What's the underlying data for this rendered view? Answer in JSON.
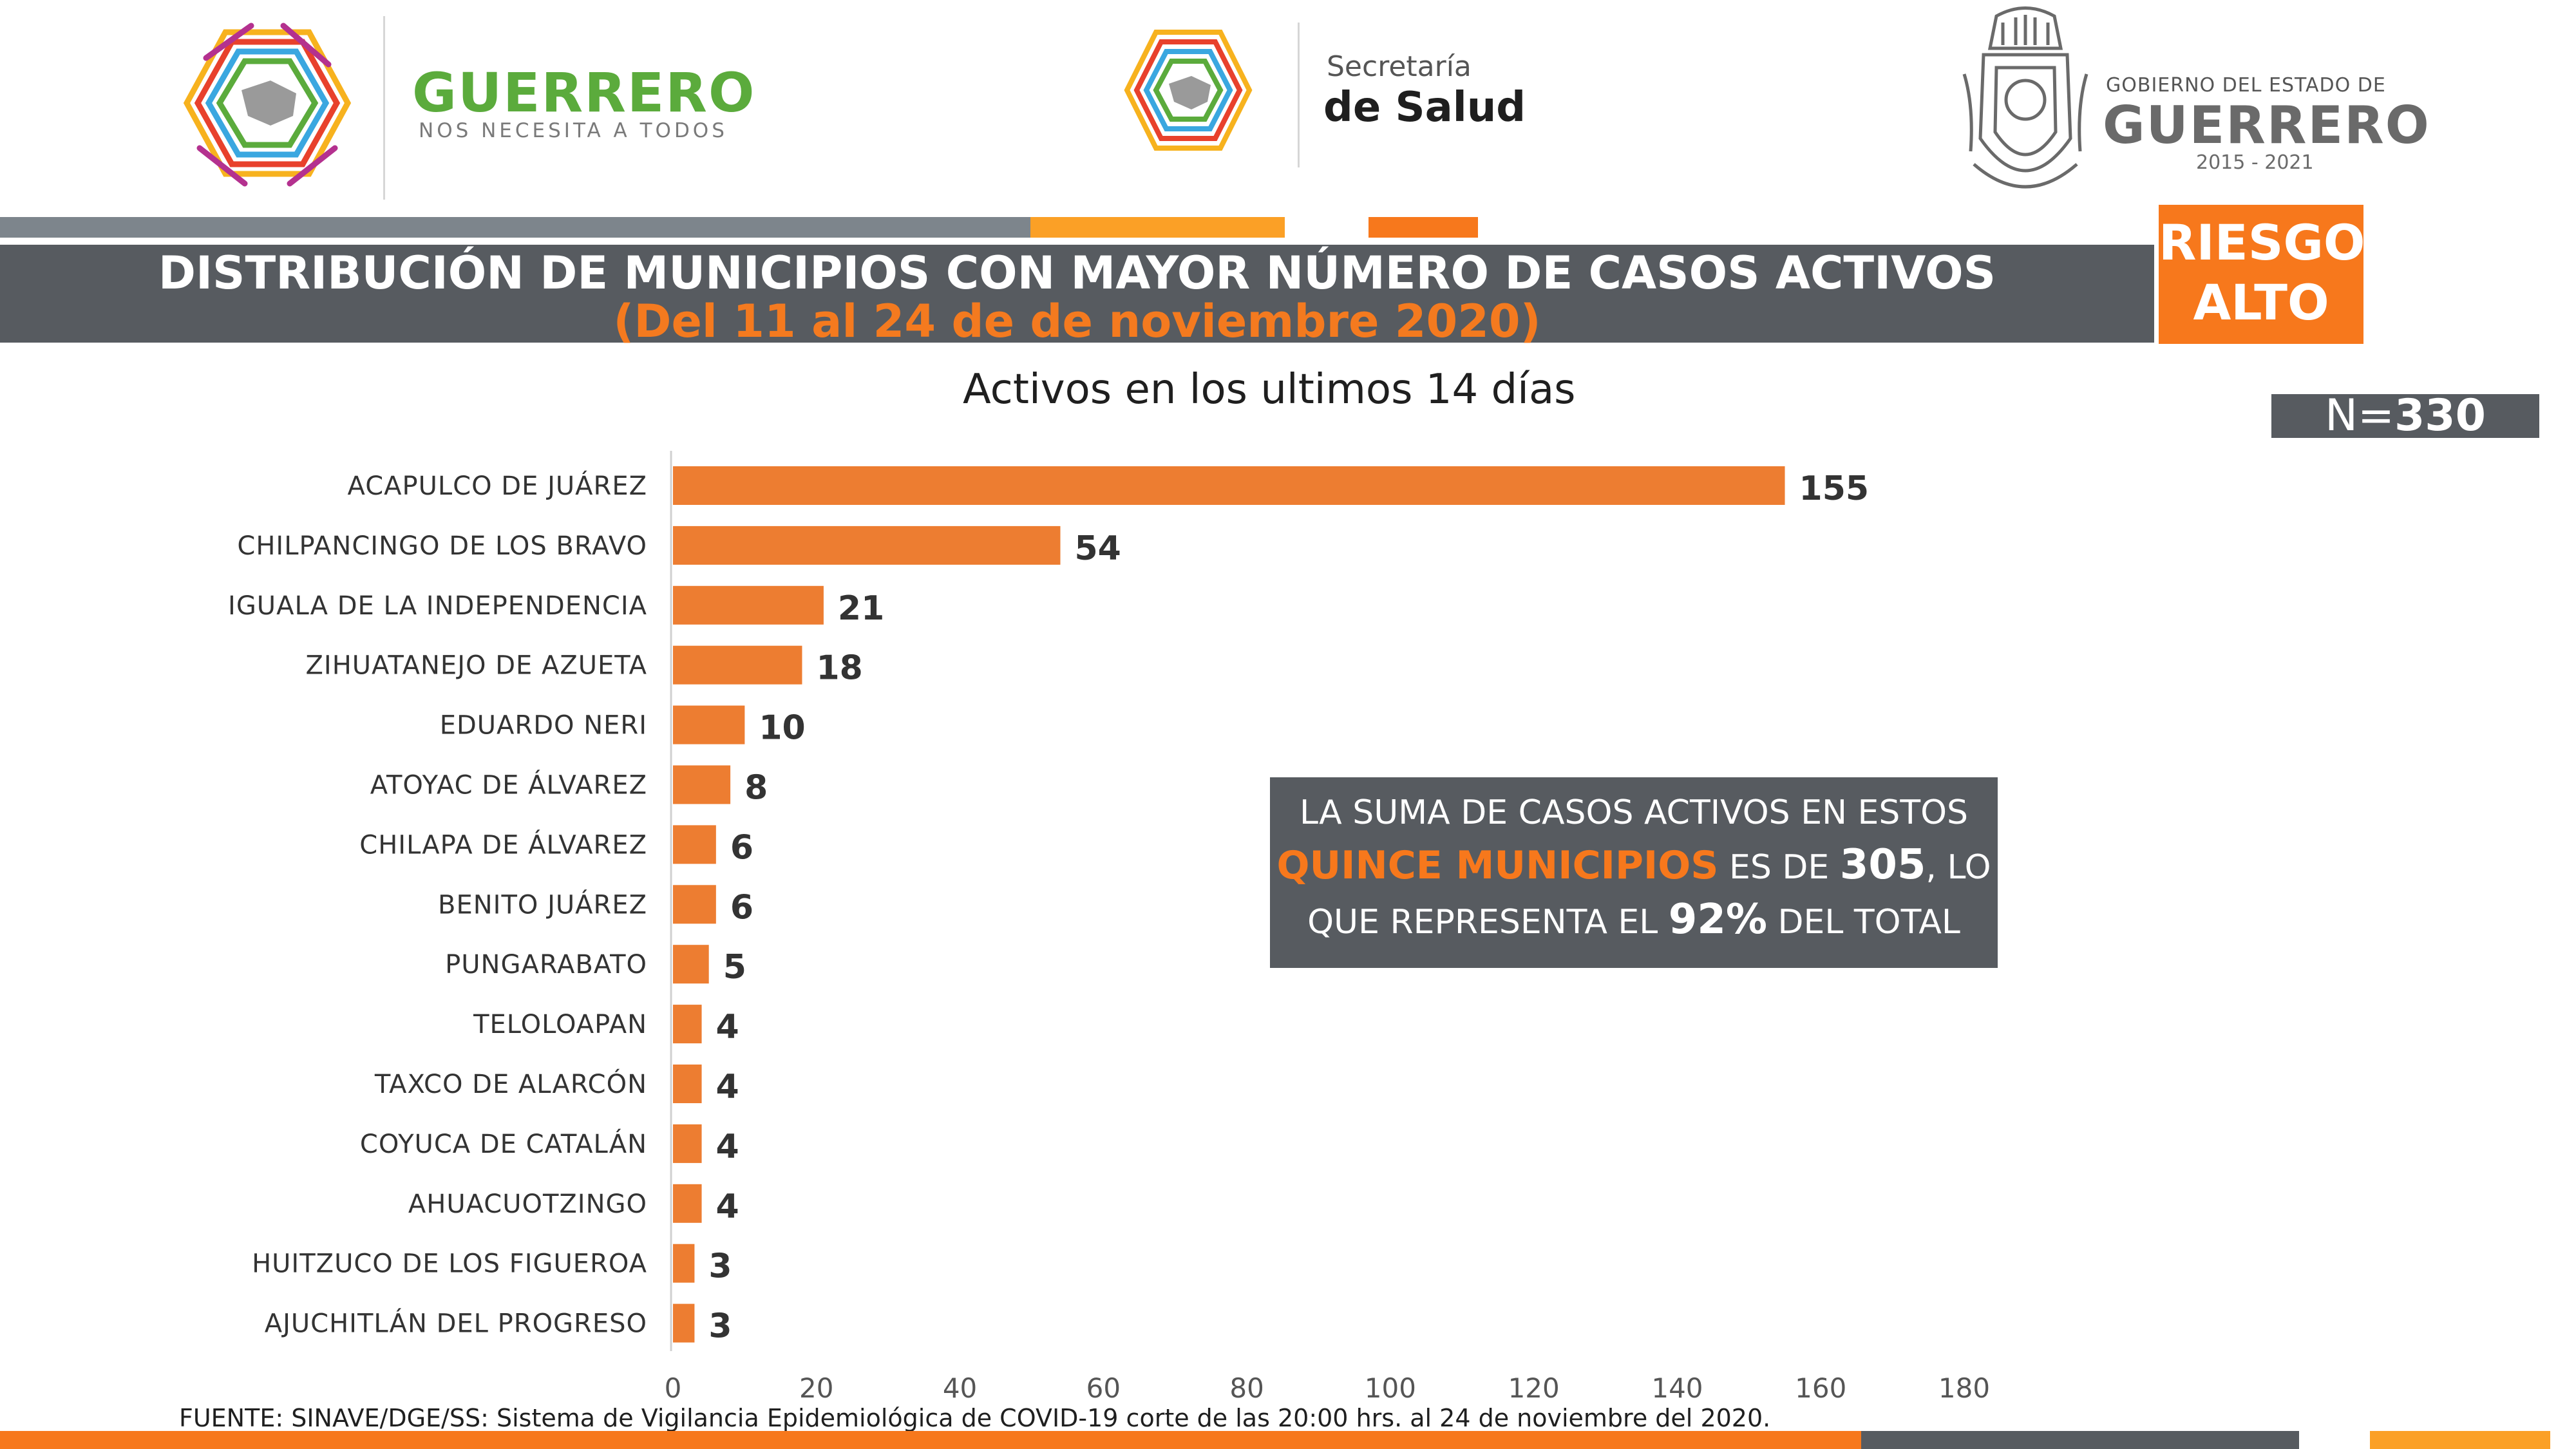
{
  "header": {
    "state_brand": {
      "name": "GUERRERO",
      "tagline": "NOS NECESITA A TODOS"
    },
    "health_brand": {
      "line1": "Secretaría",
      "line2": "de Salud"
    },
    "government": {
      "line1": "GOBIERNO DEL ESTADO DE",
      "line2": "GUERRERO",
      "line3": "2015 - 2021"
    }
  },
  "banner": {
    "title": "DISTRIBUCIÓN DE MUNICIPIOS CON MAYOR NÚMERO DE  CASOS ACTIVOS",
    "subtitle": "(Del 11 al 24 de de noviembre 2020)",
    "risk_line1": "RIESGO",
    "risk_line2": "ALTO"
  },
  "total_badge": {
    "prefix": "N=",
    "value": "330"
  },
  "callout": {
    "part1": "LA SUMA DE CASOS ACTIVOS EN ESTOS",
    "highlight": "QUINCE MUNICIPIOS",
    "part2": " ES DE ",
    "sum": "305",
    "part3": ", LO",
    "part4": "QUE REPRESENTA EL ",
    "percent": "92%",
    "part5": " DEL TOTAL"
  },
  "source": "FUENTE: SINAVE/DGE/SS: Sistema de Vigilancia Epidemiológica de COVID-19 corte de las 20:00 hrs. al 24 de noviembre del 2020.",
  "colors": {
    "bar": "#ed7d31",
    "accent_orange": "#f7781c",
    "light_orange": "#fba026",
    "dark_gray": "#575b60",
    "stripe_gray": "#7d858c",
    "brand_green": "#5bab3c"
  },
  "chart_data": {
    "type": "bar",
    "orientation": "horizontal",
    "title": "Activos en los ultimos 14 días",
    "categories": [
      "ACAPULCO DE JUÁREZ",
      "CHILPANCINGO DE LOS BRAVO",
      "IGUALA DE LA INDEPENDENCIA",
      "ZIHUATANEJO DE AZUETA",
      "EDUARDO NERI",
      "ATOYAC DE ÁLVAREZ",
      "CHILAPA DE ÁLVAREZ",
      "BENITO JUÁREZ",
      "PUNGARABATO",
      "TELOLOAPAN",
      "TAXCO DE ALARCÓN",
      "COYUCA DE CATALÁN",
      "AHUACUOTZINGO",
      "HUITZUCO DE LOS FIGUEROA",
      "AJUCHITLÁN DEL PROGRESO"
    ],
    "values": [
      155,
      54,
      21,
      18,
      10,
      8,
      6,
      6,
      5,
      4,
      4,
      4,
      4,
      3,
      3
    ],
    "xlim": [
      0,
      180
    ],
    "xticks": [
      0,
      20,
      40,
      60,
      80,
      100,
      120,
      140,
      160,
      180
    ],
    "grid": false,
    "data_labels": true
  }
}
